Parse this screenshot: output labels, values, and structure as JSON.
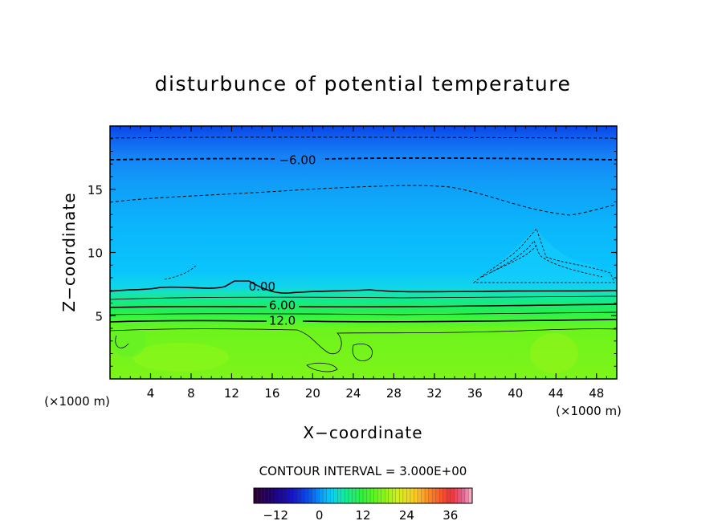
{
  "chart_data": {
    "type": "contour",
    "title": "disturbunce of potential temperature",
    "xlabel": "X−coordinate",
    "ylabel": "Z−coordinate",
    "x_unit": "(×1000 m)",
    "x_unit_right": "(×1000 m)",
    "xlim": [
      0,
      50
    ],
    "ylim": [
      0,
      20
    ],
    "x_ticks": [
      4,
      8,
      12,
      16,
      20,
      24,
      28,
      32,
      36,
      40,
      44,
      48
    ],
    "y_ticks": [
      5,
      10,
      15
    ],
    "contour_interval_text": "CONTOUR INTERVAL = 3.000E+00",
    "contour_labels": [
      {
        "text": "−6.00",
        "x": 18.5,
        "z": 17.3
      },
      {
        "text": "0.00",
        "x": 15.0,
        "z": 7.3
      },
      {
        "text": "6.00",
        "x": 17.0,
        "z": 5.8
      },
      {
        "text": "12.0",
        "x": 17.0,
        "z": 4.6
      }
    ],
    "colorbar": {
      "min": -18,
      "max": 42,
      "ticks": [
        -12,
        0,
        12,
        24,
        36
      ],
      "tick_labels": [
        "−12",
        "0",
        "12",
        "24",
        "36"
      ]
    },
    "grid": false
  }
}
